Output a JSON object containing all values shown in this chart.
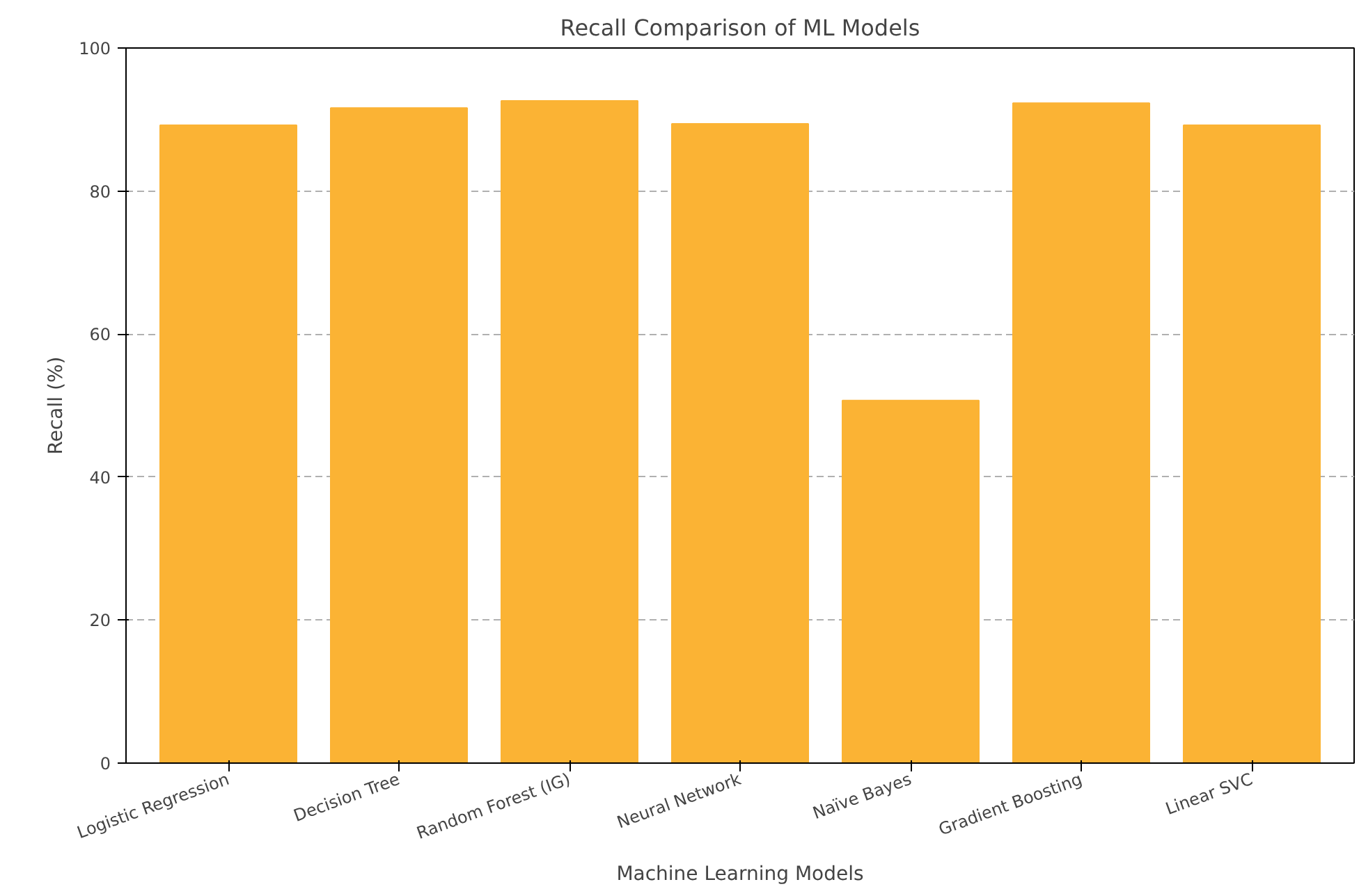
{
  "chart_data": {
    "type": "bar",
    "title": "Recall Comparison of ML Models",
    "xlabel": "Machine Learning Models",
    "ylabel": "Recall (%)",
    "categories": [
      "Logistic Regression",
      "Decision Tree",
      "Random Forest (IG)",
      "Neural Network",
      "Naïve Bayes",
      "Gradient Boosting",
      "Linear SVC"
    ],
    "values": [
      89.2,
      91.6,
      92.6,
      89.4,
      50.7,
      92.3,
      89.2
    ],
    "color": "#fbb334",
    "ylim": [
      0,
      100
    ],
    "yticks": [
      0,
      20,
      40,
      60,
      80,
      100
    ],
    "grid": "y"
  }
}
